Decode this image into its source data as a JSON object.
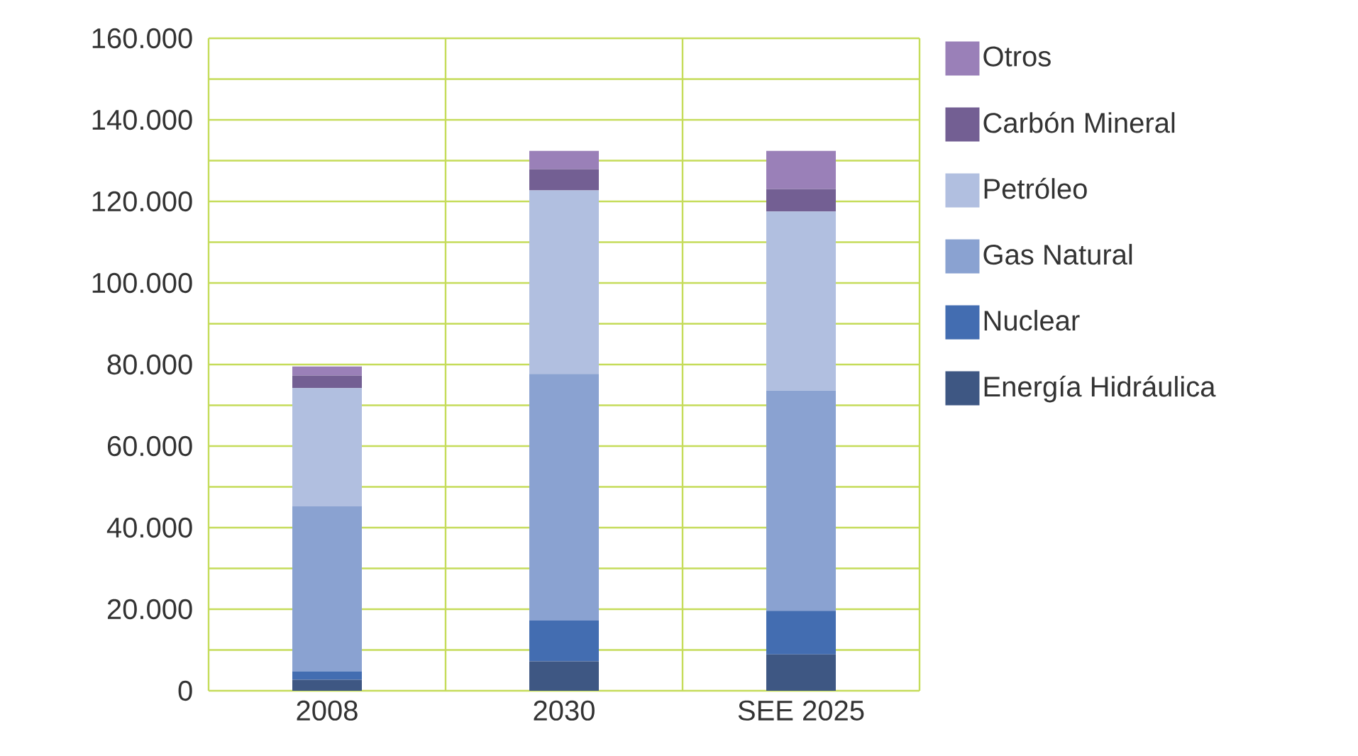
{
  "chart_data": {
    "type": "bar",
    "stacked": true,
    "categories": [
      "2008",
      "2030",
      "SEE 2025"
    ],
    "series": [
      {
        "name": "Energía Hidráulica",
        "color": "#3e5783",
        "values": [
          2700,
          7200,
          8900
        ]
      },
      {
        "name": "Nuclear",
        "color": "#436db1",
        "values": [
          2000,
          10000,
          10700
        ]
      },
      {
        "name": "Gas Natural",
        "color": "#8aa2d1",
        "values": [
          40500,
          60500,
          54000
        ]
      },
      {
        "name": "Petróleo",
        "color": "#b1bfe0",
        "values": [
          29000,
          45000,
          43900
        ]
      },
      {
        "name": "Carbón Mineral",
        "color": "#735f93",
        "values": [
          3100,
          5200,
          5500
        ]
      },
      {
        "name": "Otros",
        "color": "#9a80b8",
        "values": [
          2200,
          4500,
          9400
        ]
      }
    ],
    "ylim": [
      0,
      160000
    ],
    "yticks": [
      0,
      {
        "value": 20000,
        "label": "20.000"
      },
      {
        "value": 40000,
        "label": "40.000"
      },
      {
        "value": 60000,
        "label": "60.000"
      },
      {
        "value": 80000,
        "label": "80.000"
      },
      {
        "value": 100000,
        "label": "100.000"
      },
      {
        "value": 120000,
        "label": "120.000"
      },
      {
        "value": 140000,
        "label": "140.000"
      },
      {
        "value": 160000,
        "label": "160.000"
      }
    ],
    "grid": true,
    "legend": "right"
  }
}
